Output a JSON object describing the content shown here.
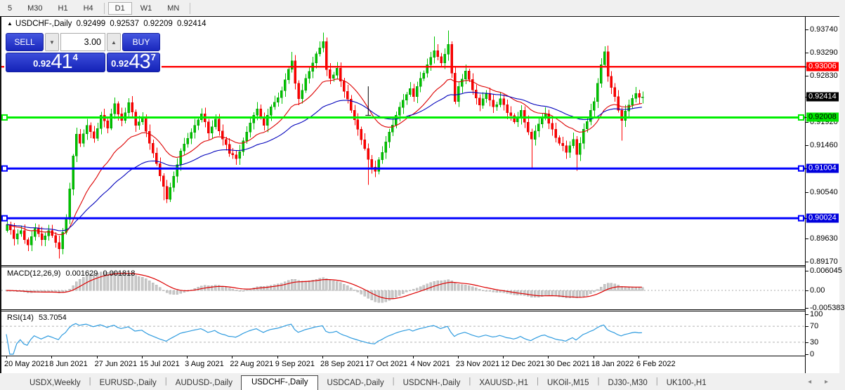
{
  "toolbar": {
    "timeframes": [
      {
        "label": "5"
      },
      {
        "label": "M30"
      },
      {
        "label": "H1"
      },
      {
        "label": "H4",
        "sep_after": true
      },
      {
        "label": "D1",
        "active": true
      },
      {
        "label": "W1"
      },
      {
        "label": "MN",
        "sep_after": true
      }
    ]
  },
  "chart": {
    "title": {
      "collapse_icon": "▲",
      "symbol": "USDCHF-,Daily",
      "open": "0.92499",
      "high": "0.92537",
      "low": "0.92209",
      "close": "0.92414"
    },
    "trade_panel": {
      "sell_label": "SELL",
      "buy_label": "BUY",
      "volume": "3.00",
      "sell_price": {
        "base": "0.92",
        "big": "41",
        "sup": "4"
      },
      "buy_price": {
        "base": "0.92",
        "big": "43",
        "sup": "7"
      }
    },
    "price_axis": {
      "ticks": [
        "0.93740",
        "0.93290",
        "0.92830",
        "0.91920",
        "0.91460",
        "0.90540",
        "0.89630",
        "0.89170"
      ],
      "boxes": [
        {
          "value": "0.93006",
          "price": 0.93006,
          "bg": "#ff0000",
          "fg": "#ffffff"
        },
        {
          "value": "0.92414",
          "price": 0.92414,
          "bg": "#000000",
          "fg": "#ffffff"
        },
        {
          "value": "0.92008",
          "price": 0.92008,
          "bg": "#00e400",
          "fg": "#000000"
        },
        {
          "value": "0.91004",
          "price": 0.91004,
          "bg": "#0000dd",
          "fg": "#ffffff"
        },
        {
          "value": "0.90024",
          "price": 0.90024,
          "bg": "#0000dd",
          "fg": "#ffffff"
        }
      ]
    },
    "hlines": [
      {
        "price": 0.93006,
        "color": "#ff0000",
        "width": 2.4,
        "marker": false
      },
      {
        "price": 0.92008,
        "color": "#00ee00",
        "width": 3,
        "marker": true
      },
      {
        "price": 0.91004,
        "color": "#0000ff",
        "width": 3,
        "marker": true
      },
      {
        "price": 0.90024,
        "color": "#0000ff",
        "width": 3,
        "marker": true
      }
    ],
    "object_vline": {
      "bar": 104,
      "from": 0.9262,
      "to": 0.9205
    }
  },
  "chart_data": {
    "type": "candlestick",
    "symbol": "USDCHF",
    "timeframe": "Daily",
    "title": "USDCHF-,Daily  O 0.92499  H 0.92537  L 0.92209  C 0.92414",
    "x_labels": [
      "20 May 2021",
      "8 Jun 2021",
      "27 Jun 2021",
      "15 Jul 2021",
      "3 Aug 2021",
      "22 Aug 2021",
      "9 Sep 2021",
      "28 Sep 2021",
      "17 Oct 2021",
      "4 Nov 2021",
      "23 Nov 2021",
      "12 Dec 2021",
      "30 Dec 2021",
      "18 Jan 2022",
      "6 Feb 2022"
    ],
    "bars_per_label": 13,
    "bar_count": 184,
    "price_range": {
      "top": 0.93961,
      "bottom": 0.89101
    },
    "y_ticks": [
      0.9374,
      0.9329,
      0.9283,
      0.9192,
      0.9146,
      0.9054,
      0.8963,
      0.8917
    ],
    "horizontal_levels": {
      "resistance": 0.93006,
      "pivot": 0.92008,
      "support1": 0.91004,
      "support2": 0.90024,
      "last": 0.92414
    },
    "close_anchors": [
      [
        0,
        0.899
      ],
      [
        2,
        0.8962
      ],
      [
        4,
        0.8978
      ],
      [
        6,
        0.895
      ],
      [
        8,
        0.8982
      ],
      [
        10,
        0.896
      ],
      [
        12,
        0.8978
      ],
      [
        14,
        0.8955
      ],
      [
        15,
        0.8942
      ],
      [
        16,
        0.8975
      ],
      [
        17,
        0.9
      ],
      [
        18,
        0.906
      ],
      [
        19,
        0.9125
      ],
      [
        20,
        0.9168
      ],
      [
        21,
        0.915
      ],
      [
        23,
        0.9185
      ],
      [
        25,
        0.916
      ],
      [
        27,
        0.9205
      ],
      [
        29,
        0.918
      ],
      [
        31,
        0.9228
      ],
      [
        33,
        0.9195
      ],
      [
        35,
        0.923
      ],
      [
        37,
        0.9185
      ],
      [
        39,
        0.92
      ],
      [
        41,
        0.915
      ],
      [
        43,
        0.911
      ],
      [
        45,
        0.9065
      ],
      [
        46,
        0.904
      ],
      [
        48,
        0.9085
      ],
      [
        50,
        0.9135
      ],
      [
        52,
        0.916
      ],
      [
        54,
        0.9185
      ],
      [
        56,
        0.9208
      ],
      [
        58,
        0.917
      ],
      [
        60,
        0.9198
      ],
      [
        62,
        0.9158
      ],
      [
        64,
        0.913
      ],
      [
        66,
        0.912
      ],
      [
        68,
        0.9155
      ],
      [
        70,
        0.919
      ],
      [
        72,
        0.9218
      ],
      [
        74,
        0.9185
      ],
      [
        76,
        0.9222
      ],
      [
        78,
        0.924
      ],
      [
        80,
        0.9275
      ],
      [
        82,
        0.9312
      ],
      [
        83,
        0.9268
      ],
      [
        84,
        0.9238
      ],
      [
        86,
        0.9278
      ],
      [
        88,
        0.9308
      ],
      [
        90,
        0.9338
      ],
      [
        91,
        0.935
      ],
      [
        92,
        0.9295
      ],
      [
        93,
        0.9278
      ],
      [
        95,
        0.9298
      ],
      [
        97,
        0.9252
      ],
      [
        99,
        0.9215
      ],
      [
        101,
        0.9178
      ],
      [
        103,
        0.914
      ],
      [
        104,
        0.9118
      ],
      [
        106,
        0.9095
      ],
      [
        108,
        0.9132
      ],
      [
        110,
        0.9172
      ],
      [
        112,
        0.9205
      ],
      [
        114,
        0.9235
      ],
      [
        116,
        0.9258
      ],
      [
        117,
        0.9242
      ],
      [
        119,
        0.9278
      ],
      [
        121,
        0.9305
      ],
      [
        123,
        0.9332
      ],
      [
        125,
        0.9308
      ],
      [
        127,
        0.9345
      ],
      [
        128,
        0.9288
      ],
      [
        129,
        0.9232
      ],
      [
        130,
        0.9262
      ],
      [
        132,
        0.9292
      ],
      [
        134,
        0.9255
      ],
      [
        136,
        0.9225
      ],
      [
        138,
        0.9248
      ],
      [
        140,
        0.9222
      ],
      [
        142,
        0.9238
      ],
      [
        144,
        0.921
      ],
      [
        146,
        0.9192
      ],
      [
        148,
        0.9215
      ],
      [
        150,
        0.9172
      ],
      [
        151,
        0.9158
      ],
      [
        153,
        0.9188
      ],
      [
        155,
        0.9208
      ],
      [
        157,
        0.9178
      ],
      [
        159,
        0.915
      ],
      [
        161,
        0.9132
      ],
      [
        163,
        0.9158
      ],
      [
        164,
        0.9128
      ],
      [
        166,
        0.9178
      ],
      [
        168,
        0.9215
      ],
      [
        169,
        0.9232
      ],
      [
        170,
        0.9268
      ],
      [
        171,
        0.9305
      ],
      [
        172,
        0.933
      ],
      [
        173,
        0.9282
      ],
      [
        175,
        0.9242
      ],
      [
        177,
        0.9195
      ],
      [
        179,
        0.9225
      ],
      [
        181,
        0.9248
      ],
      [
        183,
        0.9241
      ]
    ],
    "wick_overrides": {
      "15": {
        "low": 0.8923
      },
      "45": {
        "low": 0.9038
      },
      "46": {
        "low": 0.9032
      },
      "82": {
        "high": 0.933
      },
      "91": {
        "high": 0.9368
      },
      "104": {
        "low": 0.9068
      },
      "123": {
        "high": 0.936
      },
      "127": {
        "high": 0.9372
      },
      "151": {
        "low": 0.91
      },
      "164": {
        "low": 0.9096
      },
      "172": {
        "high": 0.9341
      },
      "177": {
        "low": 0.9155
      }
    },
    "ma": [
      {
        "period": 20,
        "color": "#dd0000"
      },
      {
        "period": 45,
        "color": "#0000bb"
      }
    ],
    "colors": {
      "up": "#00c400",
      "up_stroke": "#009100",
      "down": "#ff0000",
      "down_stroke": "#cf0000",
      "histogram": "#c8c8c8"
    },
    "indicators": {
      "macd": {
        "label": "MACD(12,26,9)",
        "value_main": "0.001629",
        "value_signal": "0.001818",
        "scale": [
          {
            "label": "0.006045",
            "value": 0.006045
          },
          {
            "label": "0.00",
            "value": 0
          },
          {
            "label": "-0.005383",
            "value": -0.005383
          }
        ]
      },
      "rsi": {
        "label": "RSI(14)",
        "value": "53.7054",
        "levels": [
          {
            "label": "100",
            "value": 100
          },
          {
            "label": "70",
            "value": 70,
            "dashed": true
          },
          {
            "label": "30",
            "value": 30,
            "dashed": true
          },
          {
            "label": "0",
            "value": 0
          }
        ],
        "line_color": "#2e9bdf"
      }
    }
  },
  "tabbar": {
    "tabs": [
      {
        "label": "USDX,Weekly"
      },
      {
        "label": "EURUSD-,Daily"
      },
      {
        "label": "AUDUSD-,Daily"
      },
      {
        "label": "USDCHF-,Daily",
        "active": true
      },
      {
        "label": "USDCAD-,Daily"
      },
      {
        "label": "USDCNH-,Daily"
      },
      {
        "label": "XAUUSD-,H1"
      },
      {
        "label": "UKOil-,M15"
      },
      {
        "label": "DJ30-,M30"
      },
      {
        "label": "UK100-,H1"
      }
    ],
    "left_arrow": "◂",
    "right_arrow": "▸"
  }
}
